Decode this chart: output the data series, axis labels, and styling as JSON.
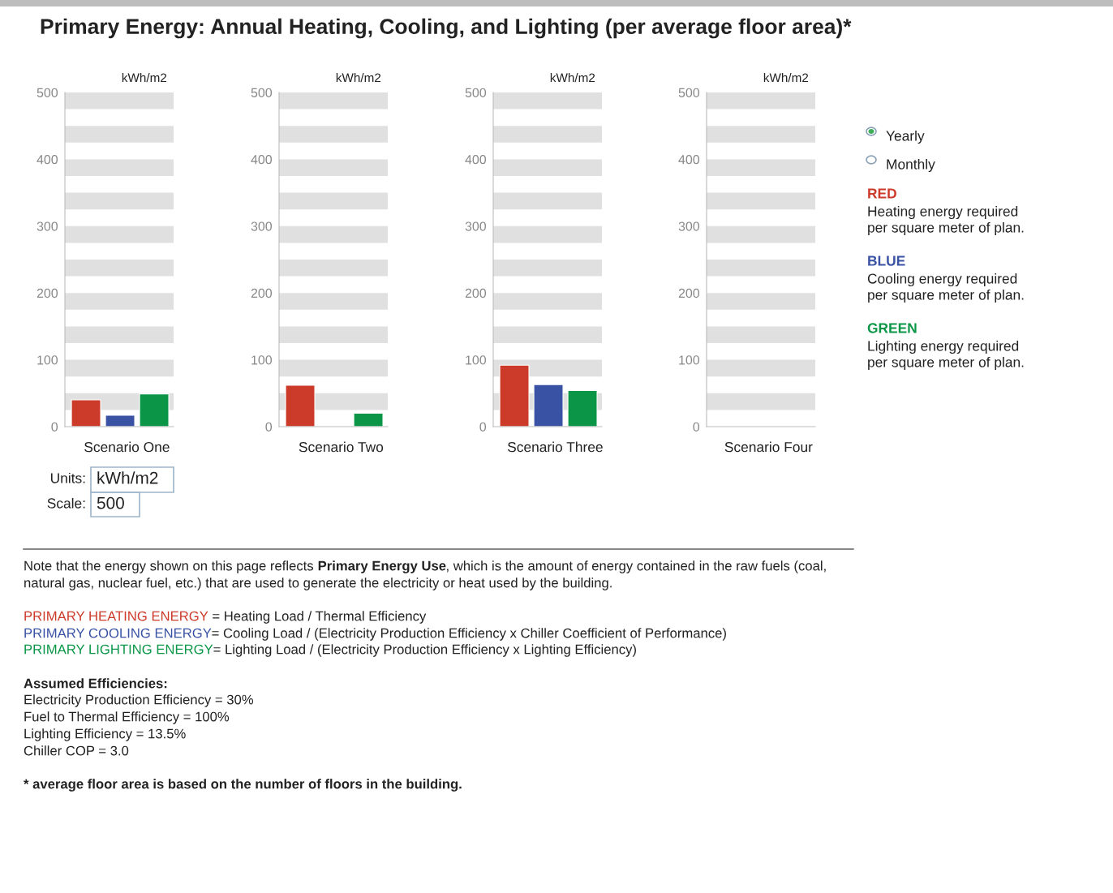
{
  "chart_data": [
    {
      "type": "bar",
      "title": "Primary Energy: Annual Heating, Cooling, and Lighting (per average floor area)*",
      "xlabel": "Scenario One",
      "ylabel": "kWh/m2",
      "categories": [
        null,
        null,
        null
      ],
      "values": [
        40,
        17,
        49
      ],
      "colors": [
        "#cc3a2a",
        "#3a52a4",
        "#0a9646"
      ],
      "ylim": [
        0,
        500
      ],
      "yticks": [
        0,
        100,
        200,
        300,
        400,
        500
      ],
      "grid": false,
      "bands": [
        {
          "axis": "y",
          "from": 25,
          "to": 50,
          "color": "#e0e0e0"
        },
        {
          "axis": "y",
          "from": 75,
          "to": 100,
          "color": "#e0e0e0"
        },
        {
          "axis": "y",
          "from": 125,
          "to": 150,
          "color": "#e0e0e0"
        },
        {
          "axis": "y",
          "from": 175,
          "to": 200,
          "color": "#e0e0e0"
        },
        {
          "axis": "y",
          "from": 225,
          "to": 250,
          "color": "#e0e0e0"
        },
        {
          "axis": "y",
          "from": 275,
          "to": 300,
          "color": "#e0e0e0"
        },
        {
          "axis": "y",
          "from": 325,
          "to": 350,
          "color": "#e0e0e0"
        },
        {
          "axis": "y",
          "from": 375,
          "to": 400,
          "color": "#e0e0e0"
        },
        {
          "axis": "y",
          "from": 425,
          "to": 450,
          "color": "#e0e0e0"
        },
        {
          "axis": "y",
          "from": 475,
          "to": 500,
          "color": "#e0e0e0"
        }
      ]
    },
    {
      "type": "bar",
      "xlabel": "Scenario Two",
      "ylabel": "kWh/m2",
      "categories": [
        null,
        null,
        null
      ],
      "values": [
        62,
        null,
        20
      ],
      "colors": [
        "#cc3a2a",
        "#3a52a4",
        "#0a9646"
      ],
      "ylim": [
        0,
        500
      ],
      "yticks": [
        0,
        100,
        200,
        300,
        400,
        500
      ],
      "grid": false,
      "bands": [
        {
          "axis": "y",
          "from": 25,
          "to": 50,
          "color": "#e0e0e0"
        },
        {
          "axis": "y",
          "from": 75,
          "to": 100,
          "color": "#e0e0e0"
        },
        {
          "axis": "y",
          "from": 125,
          "to": 150,
          "color": "#e0e0e0"
        },
        {
          "axis": "y",
          "from": 175,
          "to": 200,
          "color": "#e0e0e0"
        },
        {
          "axis": "y",
          "from": 225,
          "to": 250,
          "color": "#e0e0e0"
        },
        {
          "axis": "y",
          "from": 275,
          "to": 300,
          "color": "#e0e0e0"
        },
        {
          "axis": "y",
          "from": 325,
          "to": 350,
          "color": "#e0e0e0"
        },
        {
          "axis": "y",
          "from": 375,
          "to": 400,
          "color": "#e0e0e0"
        },
        {
          "axis": "y",
          "from": 425,
          "to": 450,
          "color": "#e0e0e0"
        },
        {
          "axis": "y",
          "from": 475,
          "to": 500,
          "color": "#e0e0e0"
        }
      ]
    },
    {
      "type": "bar",
      "xlabel": "Scenario Three",
      "ylabel": "kWh/m2",
      "categories": [
        null,
        null,
        null
      ],
      "values": [
        92,
        63,
        54
      ],
      "colors": [
        "#cc3a2a",
        "#3a52a4",
        "#0a9646"
      ],
      "ylim": [
        0,
        500
      ],
      "yticks": [
        0,
        100,
        200,
        300,
        400,
        500
      ],
      "grid": false,
      "bands": [
        {
          "axis": "y",
          "from": 25,
          "to": 50,
          "color": "#e0e0e0"
        },
        {
          "axis": "y",
          "from": 75,
          "to": 100,
          "color": "#e0e0e0"
        },
        {
          "axis": "y",
          "from": 125,
          "to": 150,
          "color": "#e0e0e0"
        },
        {
          "axis": "y",
          "from": 175,
          "to": 200,
          "color": "#e0e0e0"
        },
        {
          "axis": "y",
          "from": 225,
          "to": 250,
          "color": "#e0e0e0"
        },
        {
          "axis": "y",
          "from": 275,
          "to": 300,
          "color": "#e0e0e0"
        },
        {
          "axis": "y",
          "from": 325,
          "to": 350,
          "color": "#e0e0e0"
        },
        {
          "axis": "y",
          "from": 375,
          "to": 400,
          "color": "#e0e0e0"
        },
        {
          "axis": "y",
          "from": 425,
          "to": 450,
          "color": "#e0e0e0"
        },
        {
          "axis": "y",
          "from": 475,
          "to": 500,
          "color": "#e0e0e0"
        }
      ]
    },
    {
      "type": "bar",
      "xlabel": "Scenario Four",
      "ylabel": "kWh/m2",
      "categories": [
        null,
        null,
        null
      ],
      "values": [
        null,
        null,
        null
      ],
      "colors": [
        "#cc3a2a",
        "#3a52a4",
        "#0a9646"
      ],
      "ylim": [
        0,
        500
      ],
      "yticks": [
        0,
        100,
        200,
        300,
        400,
        500
      ],
      "grid": false,
      "bands": [
        {
          "axis": "y",
          "from": 25,
          "to": 50,
          "color": "#e0e0e0"
        },
        {
          "axis": "y",
          "from": 75,
          "to": 100,
          "color": "#e0e0e0"
        },
        {
          "axis": "y",
          "from": 125,
          "to": 150,
          "color": "#e0e0e0"
        },
        {
          "axis": "y",
          "from": 175,
          "to": 200,
          "color": "#e0e0e0"
        },
        {
          "axis": "y",
          "from": 225,
          "to": 250,
          "color": "#e0e0e0"
        },
        {
          "axis": "y",
          "from": 275,
          "to": 300,
          "color": "#e0e0e0"
        },
        {
          "axis": "y",
          "from": 325,
          "to": 350,
          "color": "#e0e0e0"
        },
        {
          "axis": "y",
          "from": 375,
          "to": 400,
          "color": "#e0e0e0"
        },
        {
          "axis": "y",
          "from": 425,
          "to": 450,
          "color": "#e0e0e0"
        },
        {
          "axis": "y",
          "from": 475,
          "to": 500,
          "color": "#e0e0e0"
        }
      ]
    },
    {
      "type": "other",
      "annotations": [
        "Yearly",
        "Monthly",
        "RED",
        "Heating energy required\nper square meter of plan.",
        "BLUE",
        "Cooling energy required\nper square meter of plan.",
        "GREEN",
        "Lighting energy required\nper square meter of plan.",
        "Units:",
        "kWh/m2",
        "Scale:",
        "500",
        "Note that the energy shown on this page reflects ",
        "Primary Energy Use",
        ", which is the amount of energy contained in the raw fuels (coal,",
        "natural gas, nuclear fuel, etc.) that are used to generate the electricity or heat used by the building.",
        "PRIMARY HEATING ENERGY",
        " = Heating Load / Thermal Efficiency",
        "PRIMARY COOLING ENERGY",
        "= Cooling Load / (Electricity Production Efficiency x Chiller Coefficient of Performance)",
        "PRIMARY LIGHTING ENERGY",
        "= Lighting Load / (Electricity Production Efficiency x Lighting Efficiency)",
        "Assumed Efficiencies:",
        "Electricity Production Efficiency = 30%",
        "Fuel to Thermal Efficiency = 100%",
        "Lighting Efficiency = 13.5%",
        "Chiller COP = 3.0",
        "* average floor area is based on the number of floors in the building."
      ],
      "colors": [
        "#222222",
        "#222222",
        "#cc3a2a",
        "#222222",
        "#3a52a4",
        "#222222",
        "#0a9646",
        "#222222",
        "#222222",
        "#222222",
        "#222222",
        "#222222",
        "#222222",
        "#222222",
        "#222222",
        "#222222",
        "#cc3a2a",
        "#222222",
        "#3a52a4",
        "#222222",
        "#0a9646",
        "#222222",
        "#222222",
        "#222222",
        "#222222",
        "#222222",
        "#222222",
        "#222222"
      ]
    }
  ]
}
